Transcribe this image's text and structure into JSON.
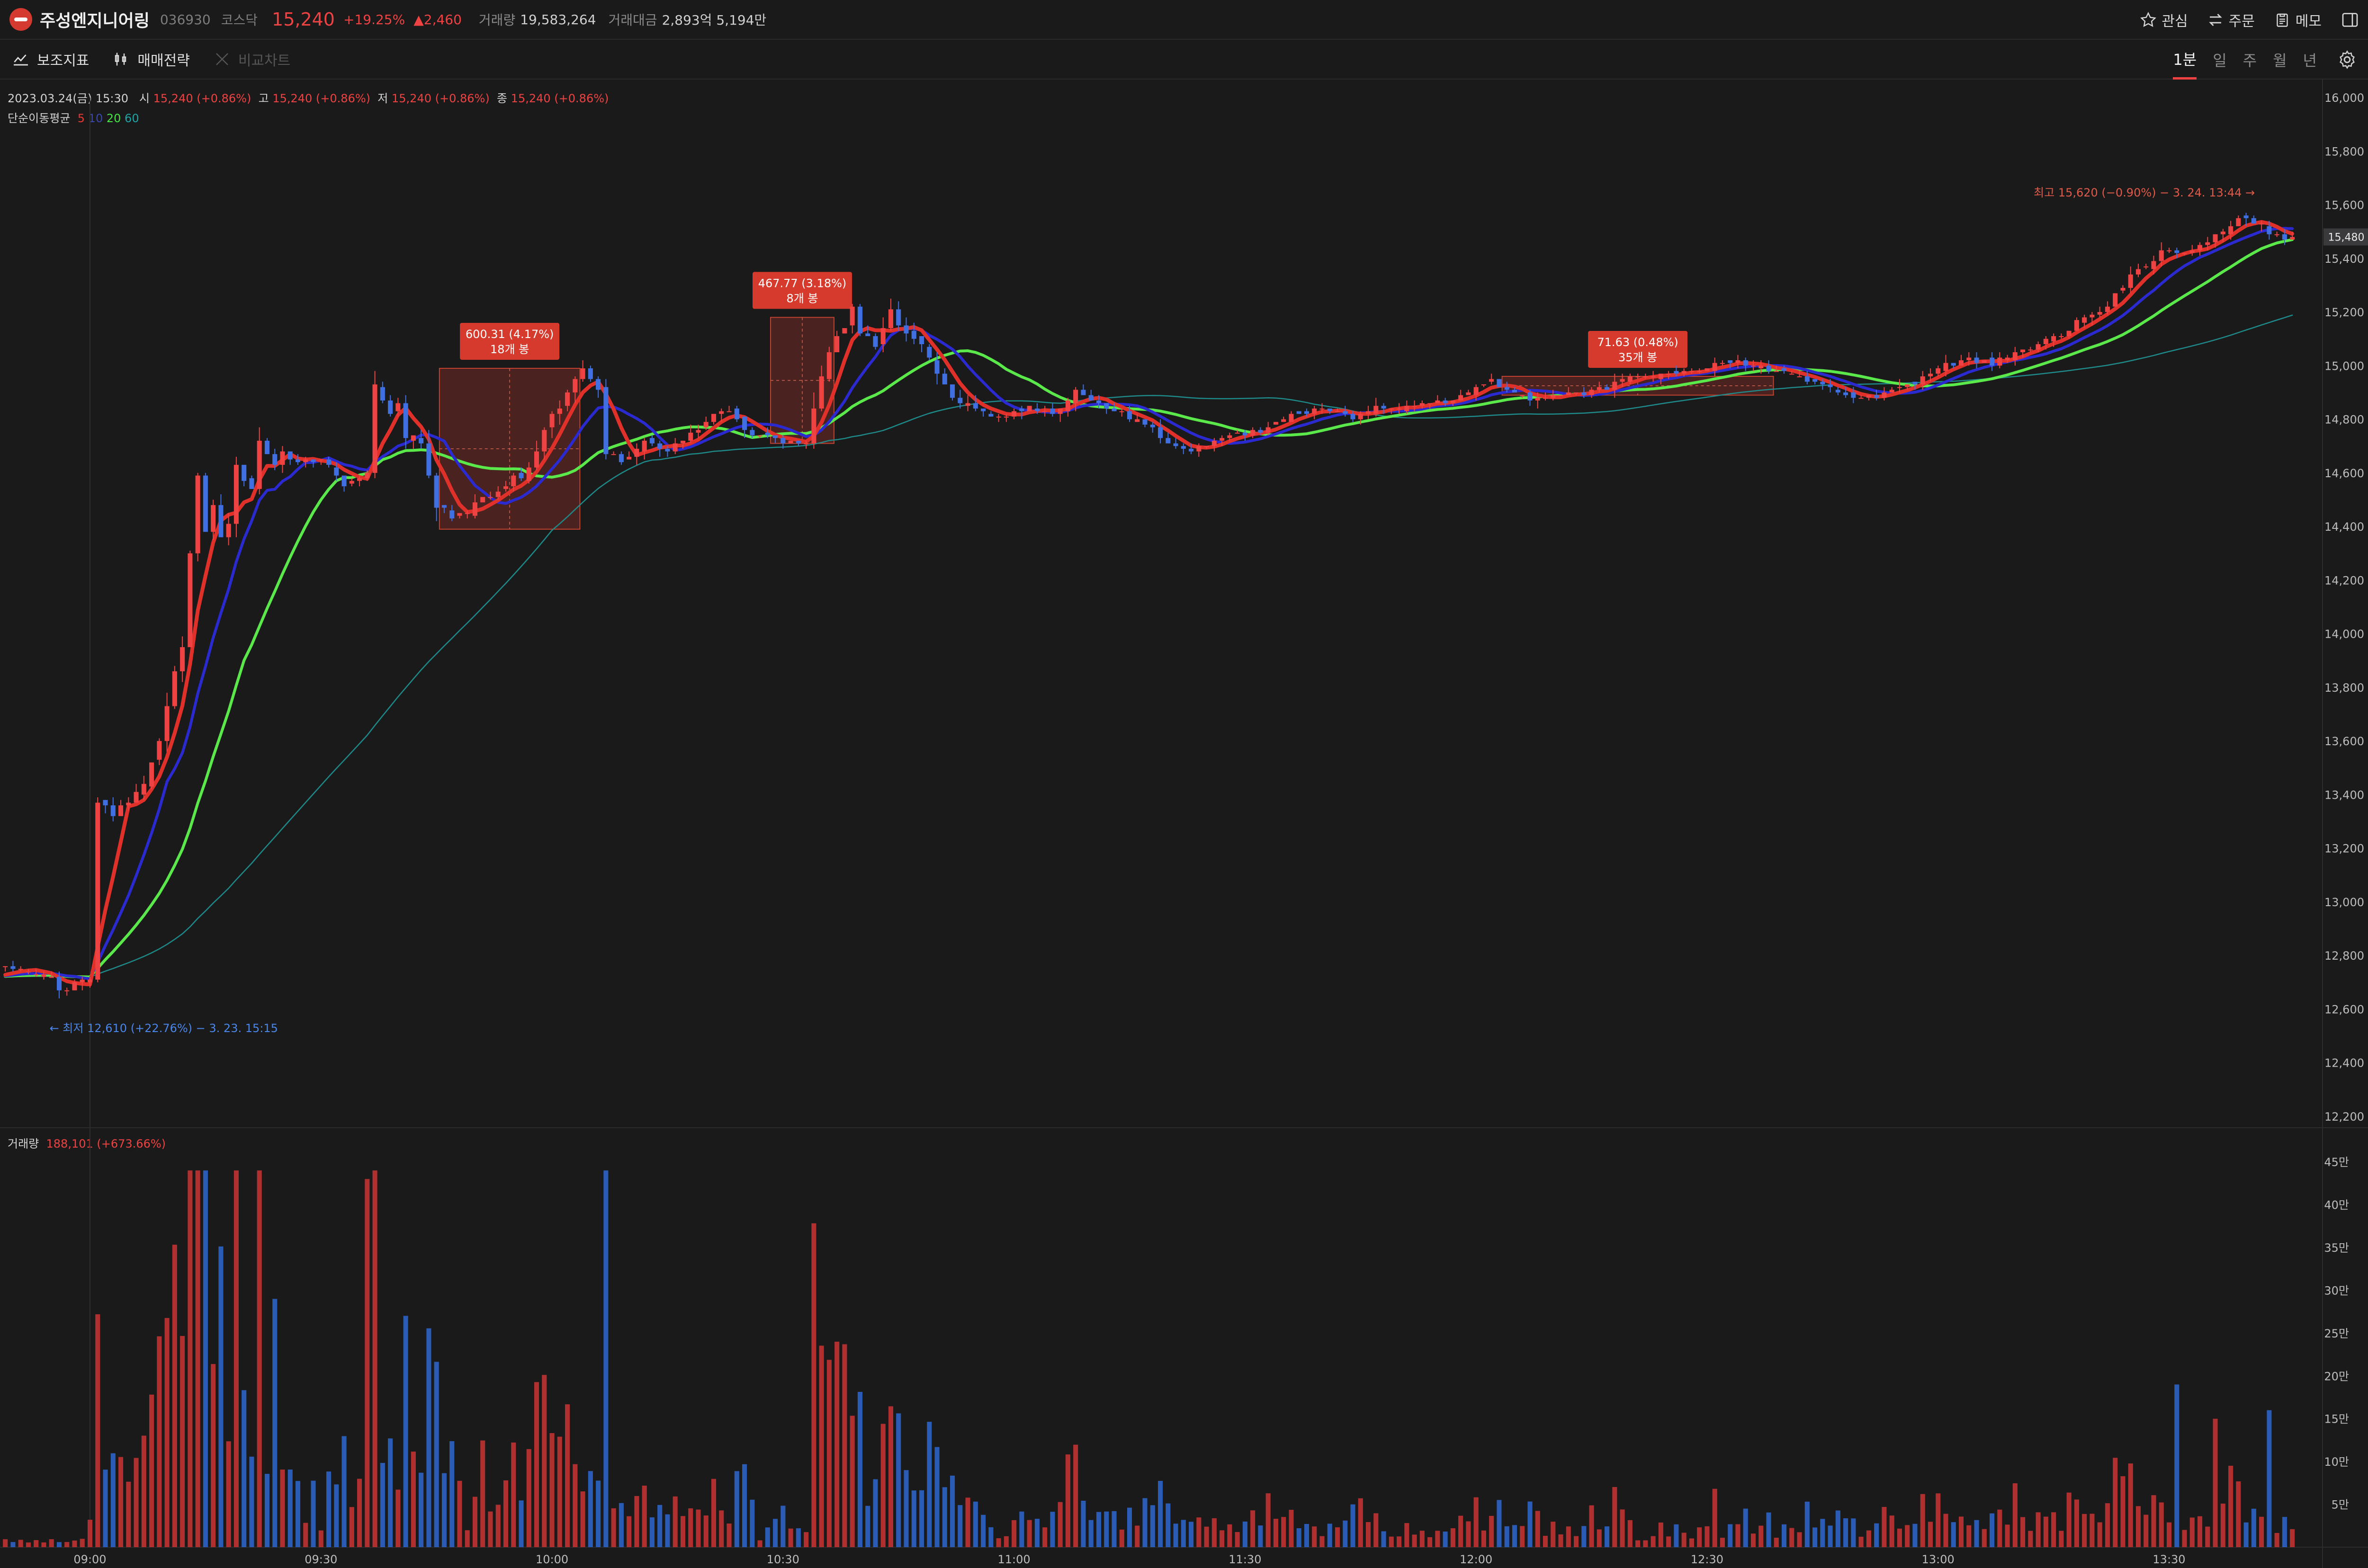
{
  "header": {
    "name": "주성엔지니어링",
    "code": "036930",
    "market": "코스닥",
    "price": "15,240",
    "change_pct": "+19.25%",
    "change_abs": "▲2,460",
    "volume_label": "거래량",
    "volume_value": "19,583,264",
    "amount_label": "거래대금",
    "amount_value": "2,893억 5,194만",
    "actions": {
      "watch": "관심",
      "order": "주문",
      "memo": "메모"
    }
  },
  "toolbar": {
    "indicators": "보조지표",
    "strategy": "매매전략",
    "compare": "비교차트",
    "periods": [
      "1분",
      "일",
      "주",
      "월",
      "년"
    ],
    "active_period": "1분"
  },
  "ohlc_line": {
    "date": "2023.03.24(금) 15:30",
    "open_label": "시",
    "open": "15,240 (+0.86%)",
    "high_label": "고",
    "high": "15,240 (+0.86%)",
    "low_label": "저",
    "low": "15,240 (+0.86%)",
    "close_label": "종",
    "close": "15,240 (+0.86%)"
  },
  "ma_legend": {
    "label": "단순이동평균",
    "periods": [
      "5",
      "10",
      "20",
      "60"
    ],
    "colors": [
      "#e53935",
      "#3949ab",
      "#43e843",
      "#1f8a8a"
    ]
  },
  "volume_legend": {
    "label": "거래량",
    "value": "188,101 (+673.66%)"
  },
  "colors": {
    "up": "#ef4242",
    "down": "#3f6fe0",
    "vol_up": "#b03030",
    "vol_down": "#2a5bb5",
    "ma5": "#e0302a",
    "ma10": "#2a2ad0",
    "ma20": "#5ae84a",
    "ma60": "#1f8a8a",
    "background": "#1a1a1b"
  },
  "chart_data": {
    "type": "candlestick",
    "price_axis": {
      "ticks": [
        12200,
        12400,
        12600,
        12800,
        13000,
        13200,
        13400,
        13600,
        13800,
        14000,
        14200,
        14400,
        14600,
        14800,
        15000,
        15200,
        15400,
        15600,
        15800,
        16000
      ],
      "ylim": [
        12200,
        16000
      ],
      "last_price_tag": "15,480"
    },
    "volume_axis": {
      "ticks": [
        50000,
        100000,
        150000,
        200000,
        250000,
        300000,
        350000,
        400000,
        450000
      ],
      "tick_labels": [
        "5만",
        "10만",
        "15만",
        "20만",
        "25만",
        "30만",
        "35만",
        "40만",
        "45만"
      ],
      "ylim": [
        0,
        470000
      ]
    },
    "time_ticks": [
      "09:00",
      "09:30",
      "10:00",
      "10:30",
      "11:00",
      "11:30",
      "12:00",
      "12:30",
      "13:00",
      "13:30"
    ],
    "x_range_minutes": [
      -11.5,
      286
    ],
    "price_path": [
      [
        -11.5,
        12760
      ],
      [
        -5,
        12720
      ],
      [
        -4,
        12640
      ],
      [
        -2,
        12690
      ],
      [
        0,
        12720
      ],
      [
        1,
        13400
      ],
      [
        3,
        13330
      ],
      [
        5,
        13380
      ],
      [
        7,
        13450
      ],
      [
        9,
        13580
      ],
      [
        10,
        13760
      ],
      [
        12,
        13960
      ],
      [
        13,
        14300
      ],
      [
        14,
        14620
      ],
      [
        15,
        14360
      ],
      [
        16,
        14480
      ],
      [
        17,
        14360
      ],
      [
        18,
        14420
      ],
      [
        19,
        14600
      ],
      [
        21,
        14550
      ],
      [
        22,
        14720
      ],
      [
        24,
        14620
      ],
      [
        25,
        14670
      ],
      [
        27,
        14640
      ],
      [
        30,
        14650
      ],
      [
        33,
        14560
      ],
      [
        36,
        14590
      ],
      [
        37,
        14900
      ],
      [
        39,
        14830
      ],
      [
        40,
        14850
      ],
      [
        41,
        14760
      ],
      [
        43,
        14720
      ],
      [
        45,
        14500
      ],
      [
        47,
        14440
      ],
      [
        49,
        14460
      ],
      [
        51,
        14500
      ],
      [
        54,
        14560
      ],
      [
        56,
        14590
      ],
      [
        58,
        14680
      ],
      [
        60,
        14800
      ],
      [
        62,
        14920
      ],
      [
        64,
        15000
      ],
      [
        66,
        14900
      ],
      [
        67,
        14700
      ],
      [
        69,
        14650
      ],
      [
        72,
        14720
      ],
      [
        75,
        14680
      ],
      [
        77,
        14720
      ],
      [
        80,
        14780
      ],
      [
        82,
        14840
      ],
      [
        84,
        14800
      ],
      [
        86,
        14740
      ],
      [
        88,
        14740
      ],
      [
        90,
        14720
      ],
      [
        92,
        14710
      ],
      [
        93,
        14700
      ],
      [
        94,
        14820
      ],
      [
        95,
        14980
      ],
      [
        97,
        15100
      ],
      [
        99,
        15200
      ],
      [
        100,
        15140
      ],
      [
        102,
        15080
      ],
      [
        104,
        15200
      ],
      [
        106,
        15120
      ],
      [
        108,
        15080
      ],
      [
        110,
        14980
      ],
      [
        112,
        14900
      ],
      [
        114,
        14850
      ],
      [
        116,
        14820
      ],
      [
        119,
        14810
      ],
      [
        122,
        14850
      ],
      [
        125,
        14820
      ],
      [
        128,
        14900
      ],
      [
        131,
        14860
      ],
      [
        134,
        14820
      ],
      [
        137,
        14780
      ],
      [
        140,
        14700
      ],
      [
        143,
        14680
      ],
      [
        146,
        14720
      ],
      [
        149,
        14740
      ],
      [
        152,
        14760
      ],
      [
        155,
        14810
      ],
      [
        158,
        14830
      ],
      [
        161,
        14840
      ],
      [
        164,
        14810
      ],
      [
        167,
        14850
      ],
      [
        170,
        14840
      ],
      [
        173,
        14860
      ],
      [
        176,
        14870
      ],
      [
        179,
        14900
      ],
      [
        182,
        14940
      ],
      [
        185,
        14910
      ],
      [
        188,
        14870
      ],
      [
        191,
        14890
      ],
      [
        194,
        14900
      ],
      [
        197,
        14920
      ],
      [
        199,
        14960
      ],
      [
        202,
        14960
      ],
      [
        205,
        14970
      ],
      [
        208,
        14980
      ],
      [
        211,
        15010
      ],
      [
        214,
        15020
      ],
      [
        217,
        14990
      ],
      [
        220,
        14980
      ],
      [
        223,
        14950
      ],
      [
        226,
        14920
      ],
      [
        229,
        14880
      ],
      [
        232,
        14890
      ],
      [
        235,
        14920
      ],
      [
        238,
        14950
      ],
      [
        241,
        15000
      ],
      [
        244,
        15020
      ],
      [
        247,
        15010
      ],
      [
        250,
        15050
      ],
      [
        253,
        15080
      ],
      [
        256,
        15120
      ],
      [
        259,
        15180
      ],
      [
        262,
        15220
      ],
      [
        264,
        15300
      ],
      [
        266,
        15350
      ],
      [
        268,
        15400
      ],
      [
        270,
        15440
      ],
      [
        272,
        15420
      ],
      [
        275,
        15460
      ],
      [
        277,
        15500
      ],
      [
        279,
        15560
      ],
      [
        281,
        15540
      ],
      [
        283,
        15500
      ],
      [
        285,
        15480
      ]
    ],
    "annotations": [
      {
        "label": "600.31 (4.17%)",
        "sub": "18개 봉",
        "t0": 46,
        "t1": 63,
        "p0": 14390,
        "p1": 14990
      },
      {
        "label": "467.77 (3.18%)",
        "sub": "8개 봉",
        "t0": 89,
        "t1": 96,
        "p0": 14710,
        "p1": 15180
      },
      {
        "label": "71.63 (0.48%)",
        "sub": "35개 봉",
        "t0": 184,
        "t1": 218,
        "p0": 14890,
        "p1": 14960
      }
    ],
    "high_marker": {
      "label": "최고 15,620 (−0.90%) − 3. 24. 13:44 →",
      "t": 282,
      "p": 15620
    },
    "low_marker": {
      "label": "← 최저 12,610 (+22.76%) − 3. 23. 15:15",
      "t": -5.5,
      "p": 12610
    },
    "ma_series": [
      "MA5",
      "MA10",
      "MA20",
      "MA60"
    ]
  }
}
